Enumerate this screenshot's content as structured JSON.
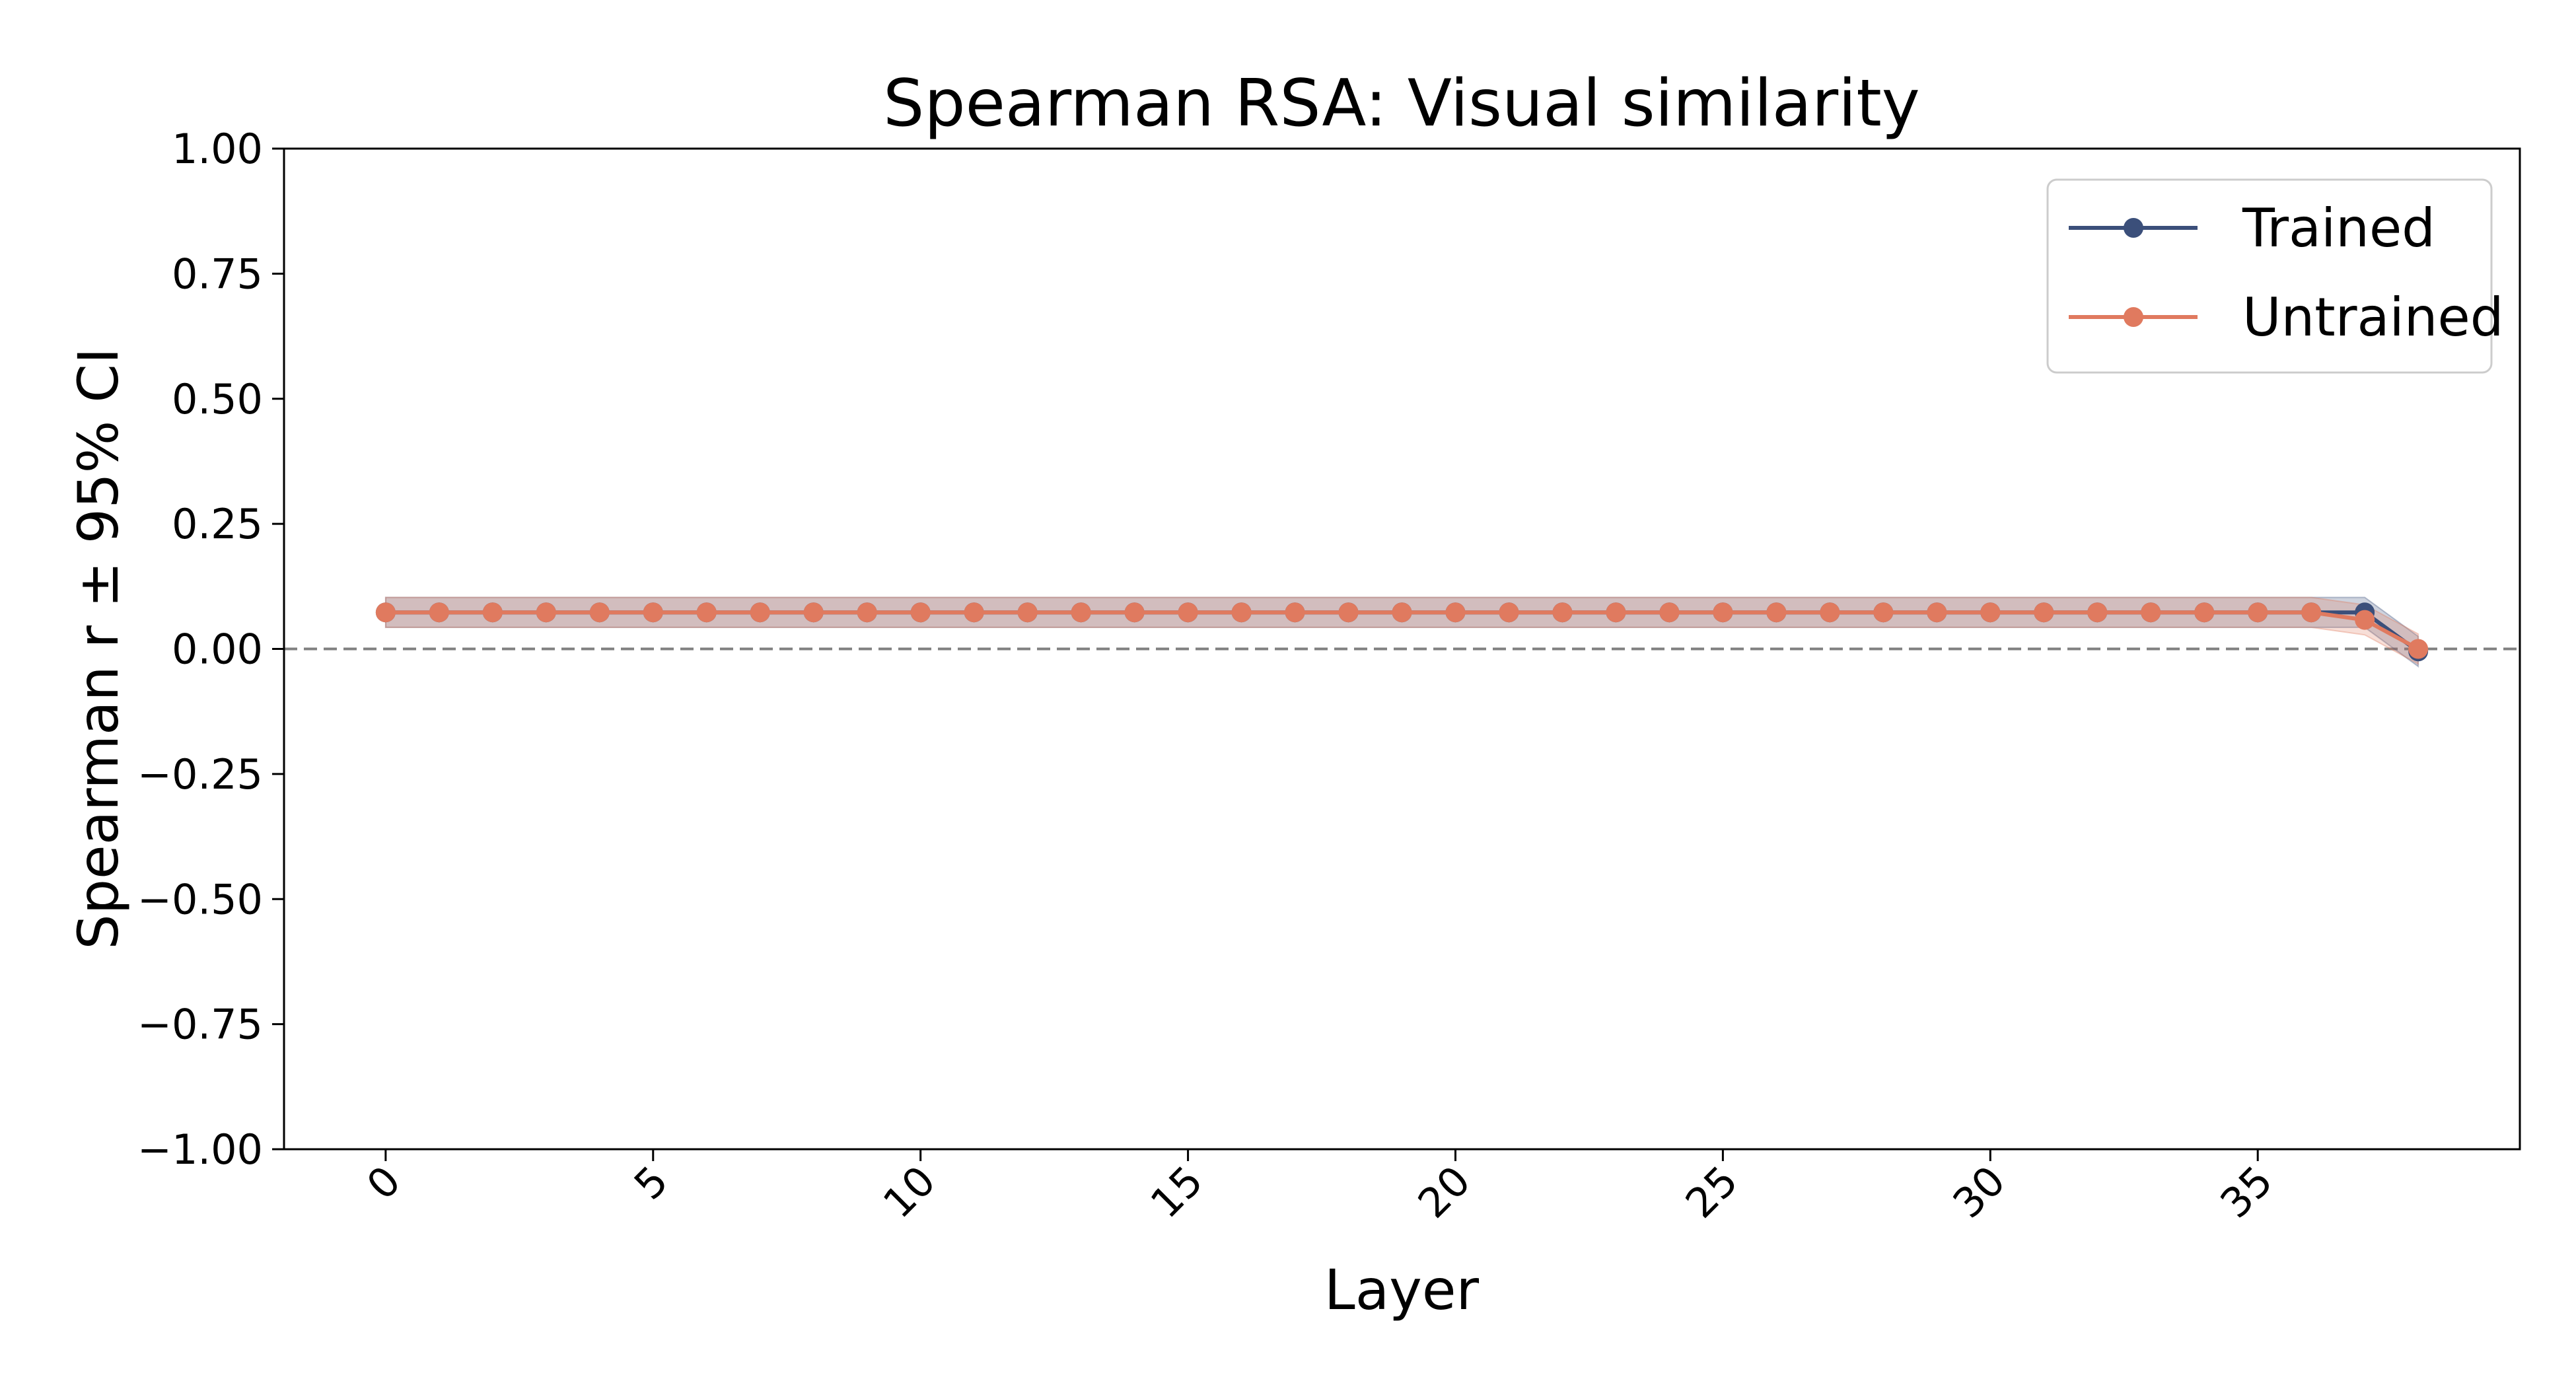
{
  "chart_data": {
    "type": "line",
    "title": "Spearman RSA: Visual similarity",
    "xlabel": "Layer",
    "ylabel": "Spearman r ± 95% CI",
    "xlim": [
      -1.9,
      39.9
    ],
    "ylim": [
      -1.0,
      1.0
    ],
    "xticks": [
      0,
      5,
      10,
      15,
      20,
      25,
      30,
      35
    ],
    "xtick_labels": [
      "0",
      "5",
      "10",
      "15",
      "20",
      "25",
      "30",
      "35"
    ],
    "yticks": [
      1.0,
      0.75,
      0.5,
      0.25,
      0.0,
      -0.25,
      -0.5,
      -0.75,
      -1.0
    ],
    "ytick_labels": [
      "1.00",
      "0.75",
      "0.50",
      "0.25",
      "0.00",
      "−0.25",
      "−0.50",
      "−0.75",
      "−1.00"
    ],
    "reference_line": {
      "y": 0.0,
      "style": "dashed",
      "color": "#808080"
    },
    "legend_position": "top-right",
    "grid": false,
    "x": [
      0,
      1,
      2,
      3,
      4,
      5,
      6,
      7,
      8,
      9,
      10,
      11,
      12,
      13,
      14,
      15,
      16,
      17,
      18,
      19,
      20,
      21,
      22,
      23,
      24,
      25,
      26,
      27,
      28,
      29,
      30,
      31,
      32,
      33,
      34,
      35,
      36,
      37,
      38
    ],
    "series": [
      {
        "name": "Trained",
        "color": "#3b4f7a",
        "values": [
          0.073,
          0.073,
          0.073,
          0.073,
          0.073,
          0.073,
          0.073,
          0.073,
          0.073,
          0.073,
          0.073,
          0.073,
          0.073,
          0.073,
          0.073,
          0.073,
          0.073,
          0.073,
          0.073,
          0.073,
          0.073,
          0.073,
          0.073,
          0.073,
          0.073,
          0.073,
          0.073,
          0.073,
          0.073,
          0.073,
          0.073,
          0.073,
          0.073,
          0.073,
          0.073,
          0.073,
          0.073,
          0.073,
          -0.005
        ],
        "ci_lower": [
          0.043,
          0.043,
          0.043,
          0.043,
          0.043,
          0.043,
          0.043,
          0.043,
          0.043,
          0.043,
          0.043,
          0.043,
          0.043,
          0.043,
          0.043,
          0.043,
          0.043,
          0.043,
          0.043,
          0.043,
          0.043,
          0.043,
          0.043,
          0.043,
          0.043,
          0.043,
          0.043,
          0.043,
          0.043,
          0.043,
          0.043,
          0.043,
          0.043,
          0.043,
          0.043,
          0.043,
          0.043,
          0.043,
          -0.035
        ],
        "ci_upper": [
          0.103,
          0.103,
          0.103,
          0.103,
          0.103,
          0.103,
          0.103,
          0.103,
          0.103,
          0.103,
          0.103,
          0.103,
          0.103,
          0.103,
          0.103,
          0.103,
          0.103,
          0.103,
          0.103,
          0.103,
          0.103,
          0.103,
          0.103,
          0.103,
          0.103,
          0.103,
          0.103,
          0.103,
          0.103,
          0.103,
          0.103,
          0.103,
          0.103,
          0.103,
          0.103,
          0.103,
          0.103,
          0.103,
          0.025
        ]
      },
      {
        "name": "Untrained",
        "color": "#e07a5f",
        "values": [
          0.073,
          0.073,
          0.073,
          0.073,
          0.073,
          0.073,
          0.073,
          0.073,
          0.073,
          0.073,
          0.073,
          0.073,
          0.073,
          0.073,
          0.073,
          0.073,
          0.073,
          0.073,
          0.073,
          0.073,
          0.073,
          0.073,
          0.073,
          0.073,
          0.073,
          0.073,
          0.073,
          0.073,
          0.073,
          0.073,
          0.073,
          0.073,
          0.073,
          0.073,
          0.073,
          0.073,
          0.073,
          0.058,
          0.0
        ],
        "ci_lower": [
          0.043,
          0.043,
          0.043,
          0.043,
          0.043,
          0.043,
          0.043,
          0.043,
          0.043,
          0.043,
          0.043,
          0.043,
          0.043,
          0.043,
          0.043,
          0.043,
          0.043,
          0.043,
          0.043,
          0.043,
          0.043,
          0.043,
          0.043,
          0.043,
          0.043,
          0.043,
          0.043,
          0.043,
          0.043,
          0.043,
          0.043,
          0.043,
          0.043,
          0.043,
          0.043,
          0.043,
          0.043,
          0.028,
          -0.03
        ],
        "ci_upper": [
          0.103,
          0.103,
          0.103,
          0.103,
          0.103,
          0.103,
          0.103,
          0.103,
          0.103,
          0.103,
          0.103,
          0.103,
          0.103,
          0.103,
          0.103,
          0.103,
          0.103,
          0.103,
          0.103,
          0.103,
          0.103,
          0.103,
          0.103,
          0.103,
          0.103,
          0.103,
          0.103,
          0.103,
          0.103,
          0.103,
          0.103,
          0.103,
          0.103,
          0.103,
          0.103,
          0.103,
          0.103,
          0.088,
          0.03
        ]
      }
    ]
  }
}
